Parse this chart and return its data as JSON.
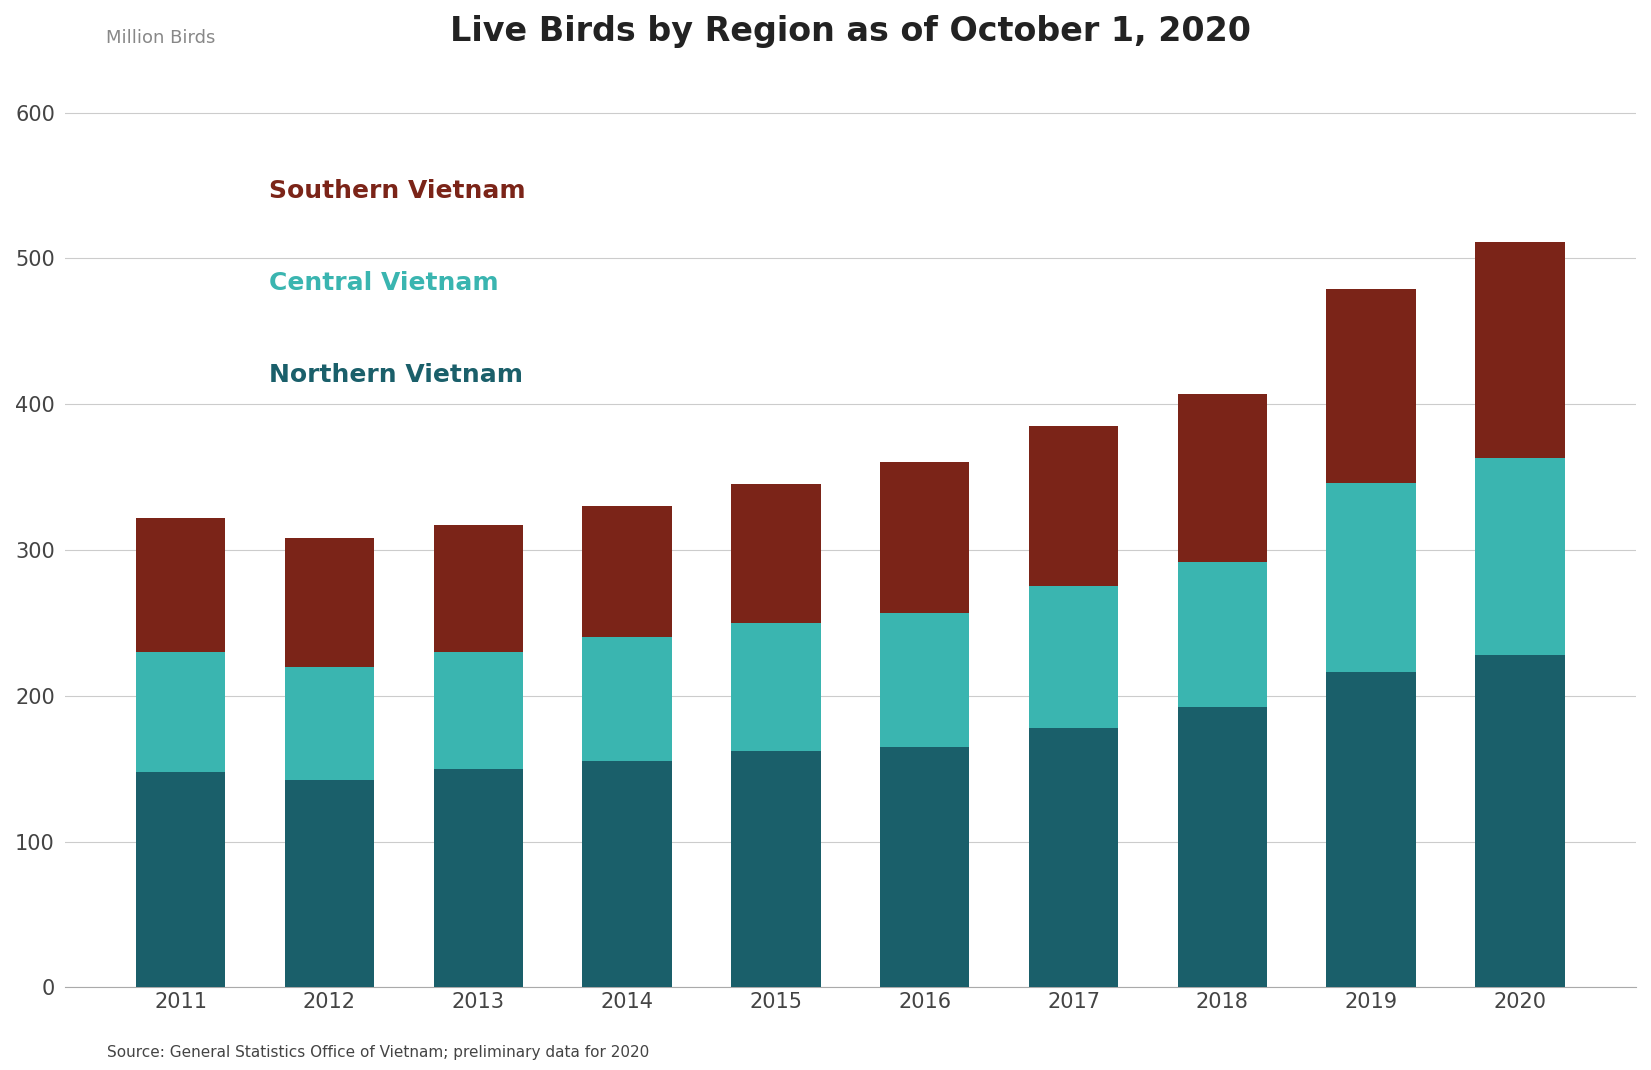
{
  "years": [
    2011,
    2012,
    2013,
    2014,
    2015,
    2016,
    2017,
    2018,
    2019,
    2020
  ],
  "northern": [
    148,
    142,
    150,
    155,
    162,
    165,
    178,
    192,
    216,
    228
  ],
  "central": [
    82,
    78,
    80,
    85,
    88,
    92,
    97,
    100,
    130,
    135
  ],
  "southern": [
    92,
    88,
    87,
    90,
    95,
    103,
    110,
    115,
    133,
    148
  ],
  "color_northern": "#1a5f6a",
  "color_central": "#3ab5b0",
  "color_southern": "#7b2418",
  "title": "Live Birds by Region as of October 1, 2020",
  "ylabel": "Million Birds",
  "source": "Source: General Statistics Office of Vietnam; preliminary data for 2020",
  "legend_labels": [
    "Southern Vietnam",
    "Central Vietnam",
    "Northern Vietnam"
  ],
  "legend_colors": [
    "#7b2418",
    "#3ab5b0",
    "#1a5f6a"
  ],
  "yticks": [
    0,
    100,
    200,
    300,
    400,
    500,
    600
  ],
  "ylim": [
    0,
    630
  ]
}
